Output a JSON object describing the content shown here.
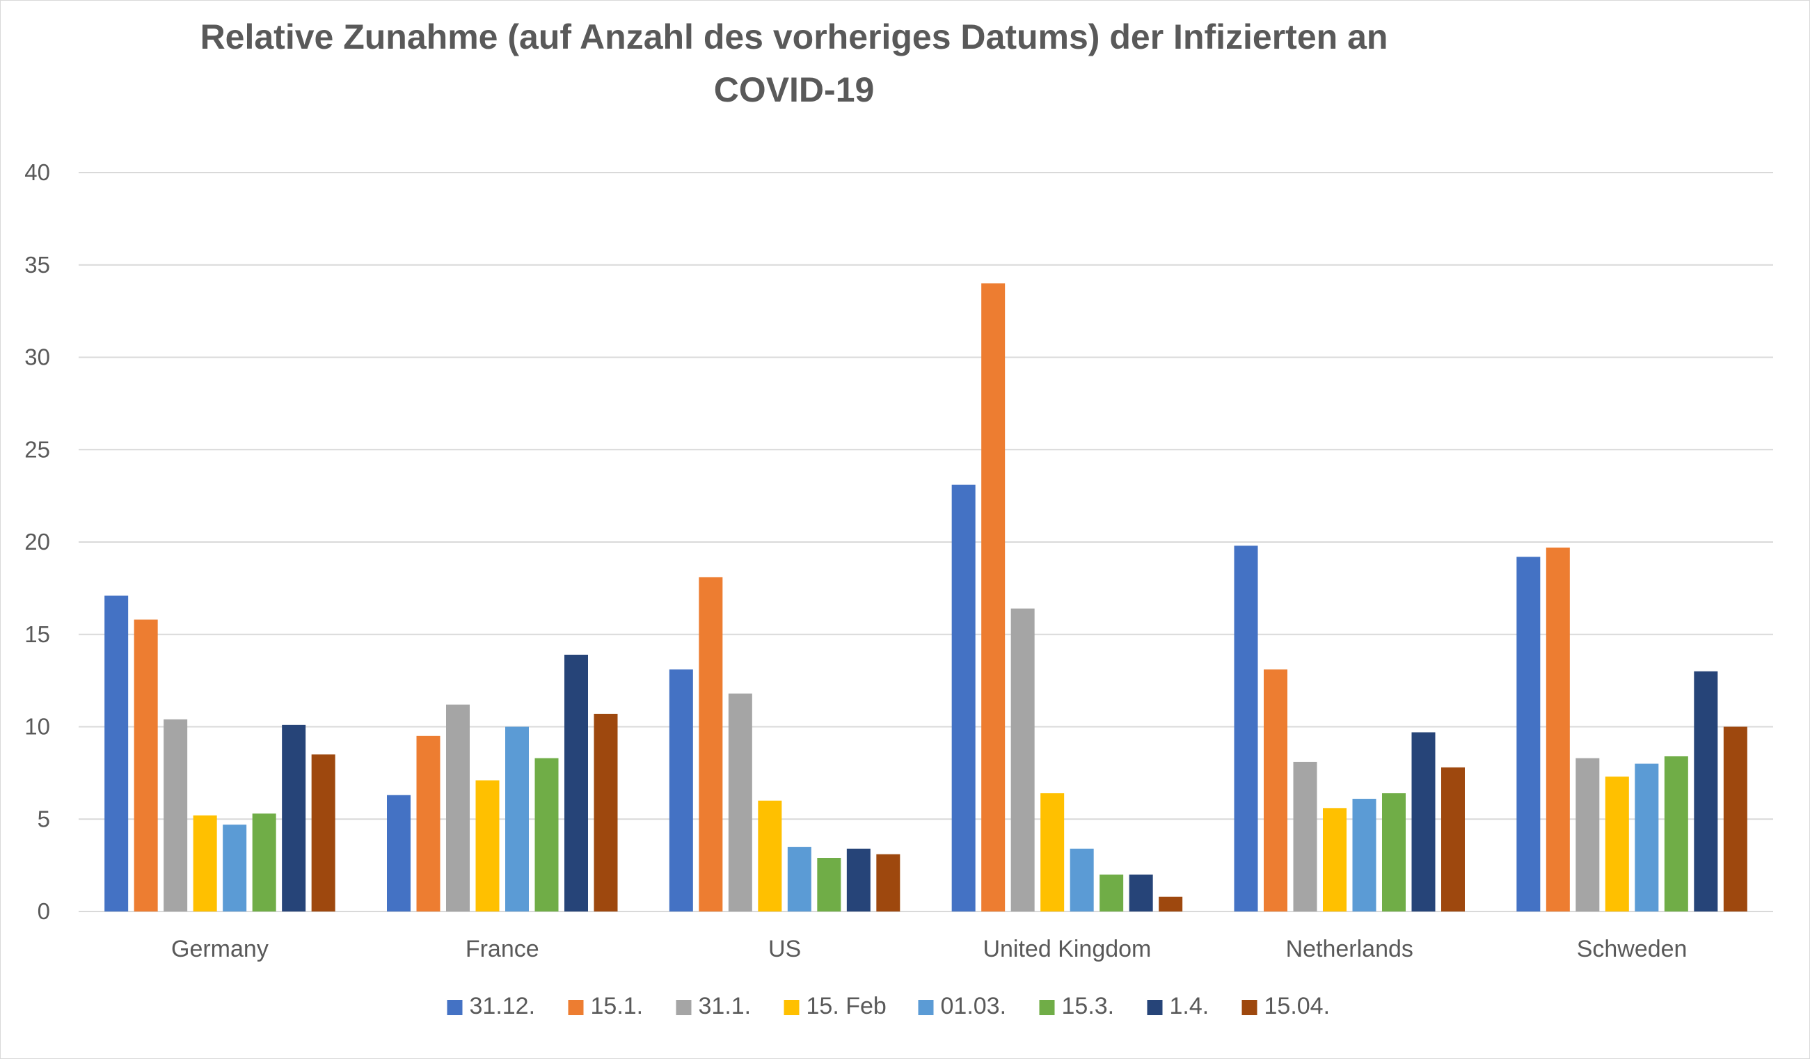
{
  "chart_data": {
    "type": "bar",
    "title": "Relative Zunahme (auf Anzahl des vorheriges Datums) der Infizierten an COVID-19",
    "categories": [
      "Germany",
      "France",
      "US",
      "United Kingdom",
      "Netherlands",
      "Schweden"
    ],
    "series": [
      {
        "name": "31.12.",
        "color": "#4472C4",
        "values": [
          17.1,
          6.3,
          13.1,
          23.1,
          19.8,
          19.2
        ]
      },
      {
        "name": "15.1.",
        "color": "#ED7D31",
        "values": [
          15.8,
          9.5,
          18.1,
          34.0,
          13.1,
          19.7
        ]
      },
      {
        "name": "31.1.",
        "color": "#A5A5A5",
        "values": [
          10.4,
          11.2,
          11.8,
          16.4,
          8.1,
          8.3
        ]
      },
      {
        "name": "15. Feb",
        "color": "#FFC000",
        "values": [
          5.2,
          7.1,
          6.0,
          6.4,
          5.6,
          7.3
        ]
      },
      {
        "name": "01.03.",
        "color": "#5B9BD5",
        "values": [
          4.7,
          10.0,
          3.5,
          3.4,
          6.1,
          8.0
        ]
      },
      {
        "name": "15.3.",
        "color": "#70AD47",
        "values": [
          5.3,
          8.3,
          2.9,
          2.0,
          6.4,
          8.4
        ]
      },
      {
        "name": "1.4.",
        "color": "#264478",
        "values": [
          10.1,
          13.9,
          3.4,
          2.0,
          9.7,
          13.0
        ]
      },
      {
        "name": "15.04.",
        "color": "#9E480E",
        "values": [
          8.5,
          10.7,
          3.1,
          0.8,
          7.8,
          10.0
        ]
      }
    ],
    "ylim": [
      0,
      40
    ],
    "yticks": [
      "0",
      "5",
      "10",
      "15",
      "20",
      "25",
      "30",
      "35",
      "40"
    ],
    "grid": true,
    "legend_position": "bottom",
    "gridline_color": "#D9D9D9",
    "text_color": "#595959"
  }
}
